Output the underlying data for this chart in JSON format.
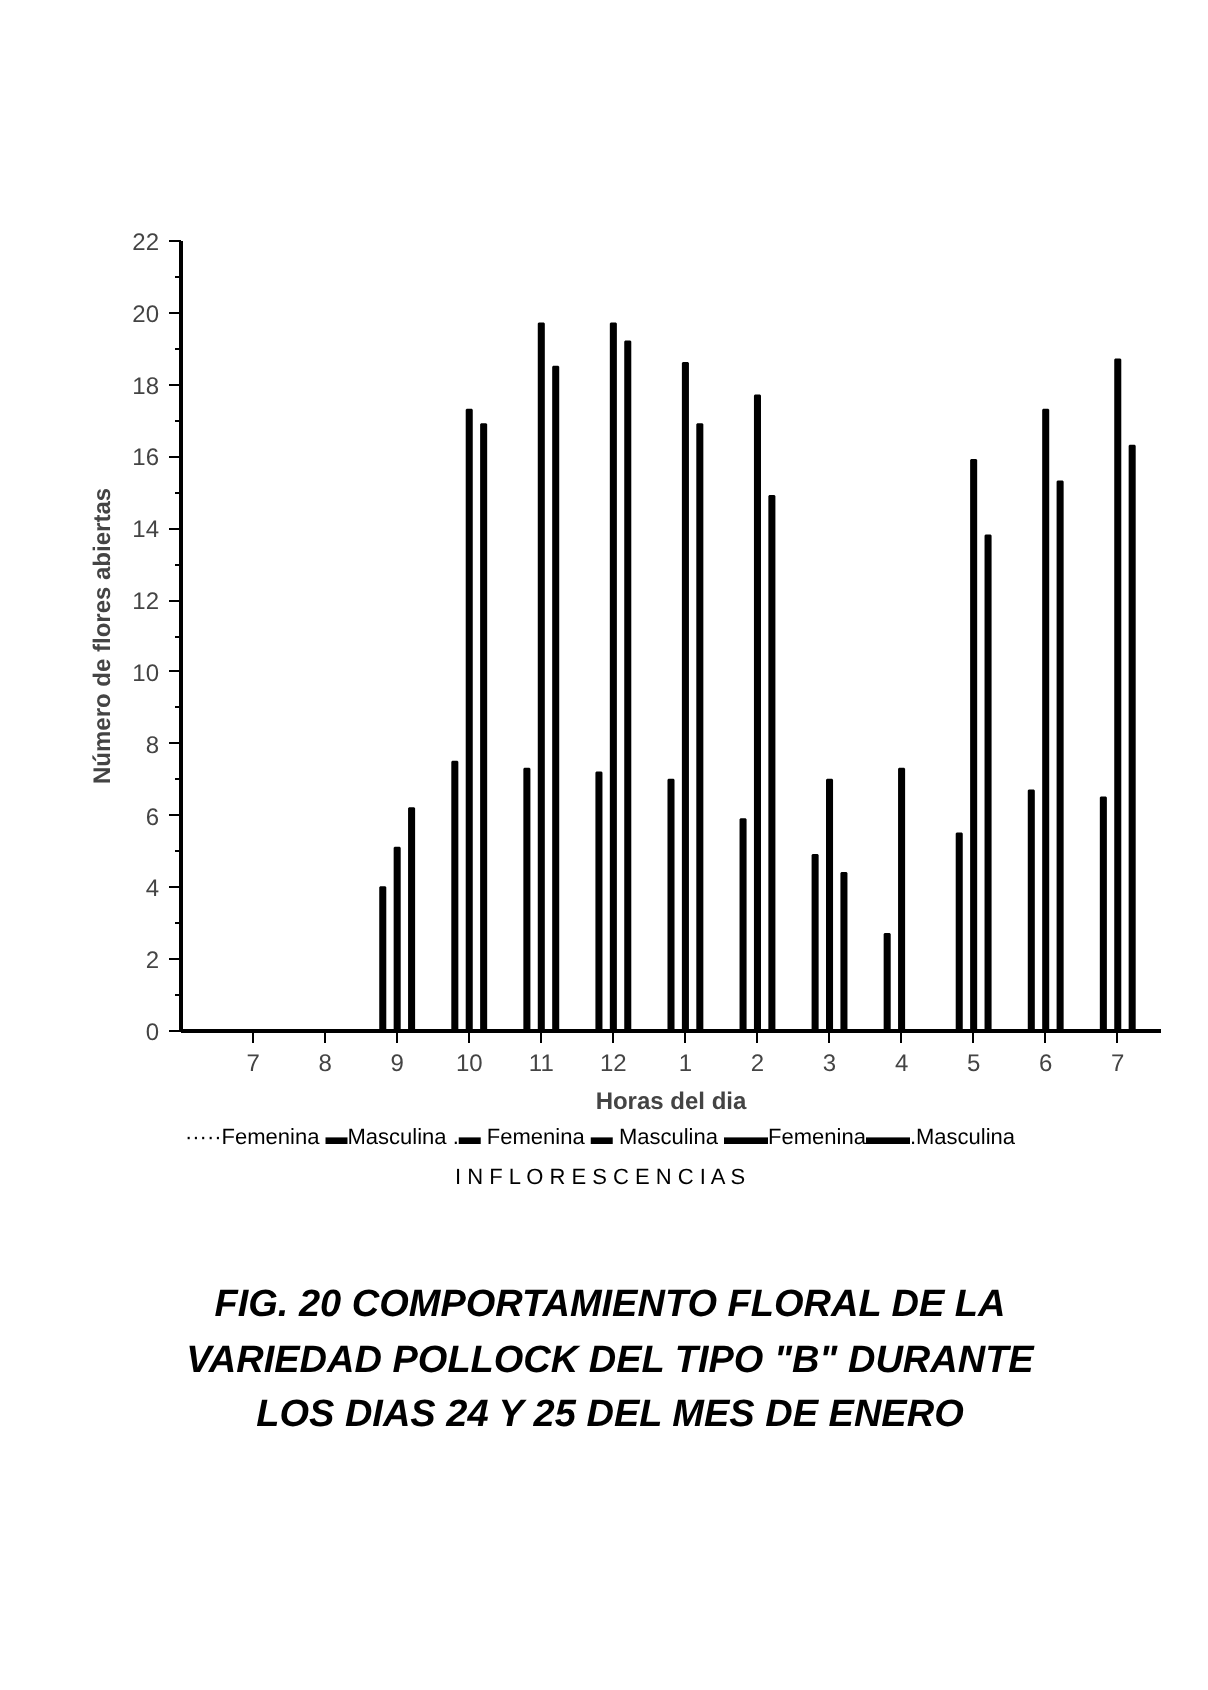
{
  "chart_data": {
    "type": "bar",
    "title": "FIG. 20  COMPORTAMIENTO FLORAL DE LA\nVARIEDAD POLLOCK DEL TIPO \"B\" DURANTE\nLOS DIAS 24 Y 25 DEL MES DE ENERO",
    "xlabel": "Horas del dia",
    "ylabel": "Número de flores abiertas",
    "categories": [
      "7",
      "8",
      "9",
      "10",
      "11",
      "12",
      "1",
      "2",
      "3",
      "4",
      "5",
      "6",
      "7"
    ],
    "series": [
      {
        "color": "#000000",
        "values": [
          null,
          null,
          4.0,
          7.5,
          7.3,
          7.2,
          7.0,
          5.9,
          4.9,
          2.7,
          5.5,
          6.7,
          6.5
        ]
      },
      {
        "color": "#000000",
        "values": [
          null,
          null,
          5.1,
          17.3,
          19.7,
          19.7,
          18.6,
          17.7,
          7.0,
          7.3,
          15.9,
          17.3,
          18.7
        ]
      },
      {
        "color": "#000000",
        "values": [
          null,
          null,
          6.2,
          16.9,
          18.5,
          19.2,
          16.9,
          14.9,
          4.4,
          null,
          13.8,
          15.3,
          16.3
        ]
      }
    ],
    "ylim": [
      0,
      22
    ],
    "yticks": [
      0,
      2,
      4,
      6,
      8,
      10,
      12,
      14,
      16,
      18,
      20,
      22
    ],
    "annotations": [
      "·····Femenina ▬Masculina .▬ Femenina ▬ Masculina ▬▬Femenina▬▬.Masculina",
      "I N F L O R E S C E N C I A S"
    ]
  }
}
